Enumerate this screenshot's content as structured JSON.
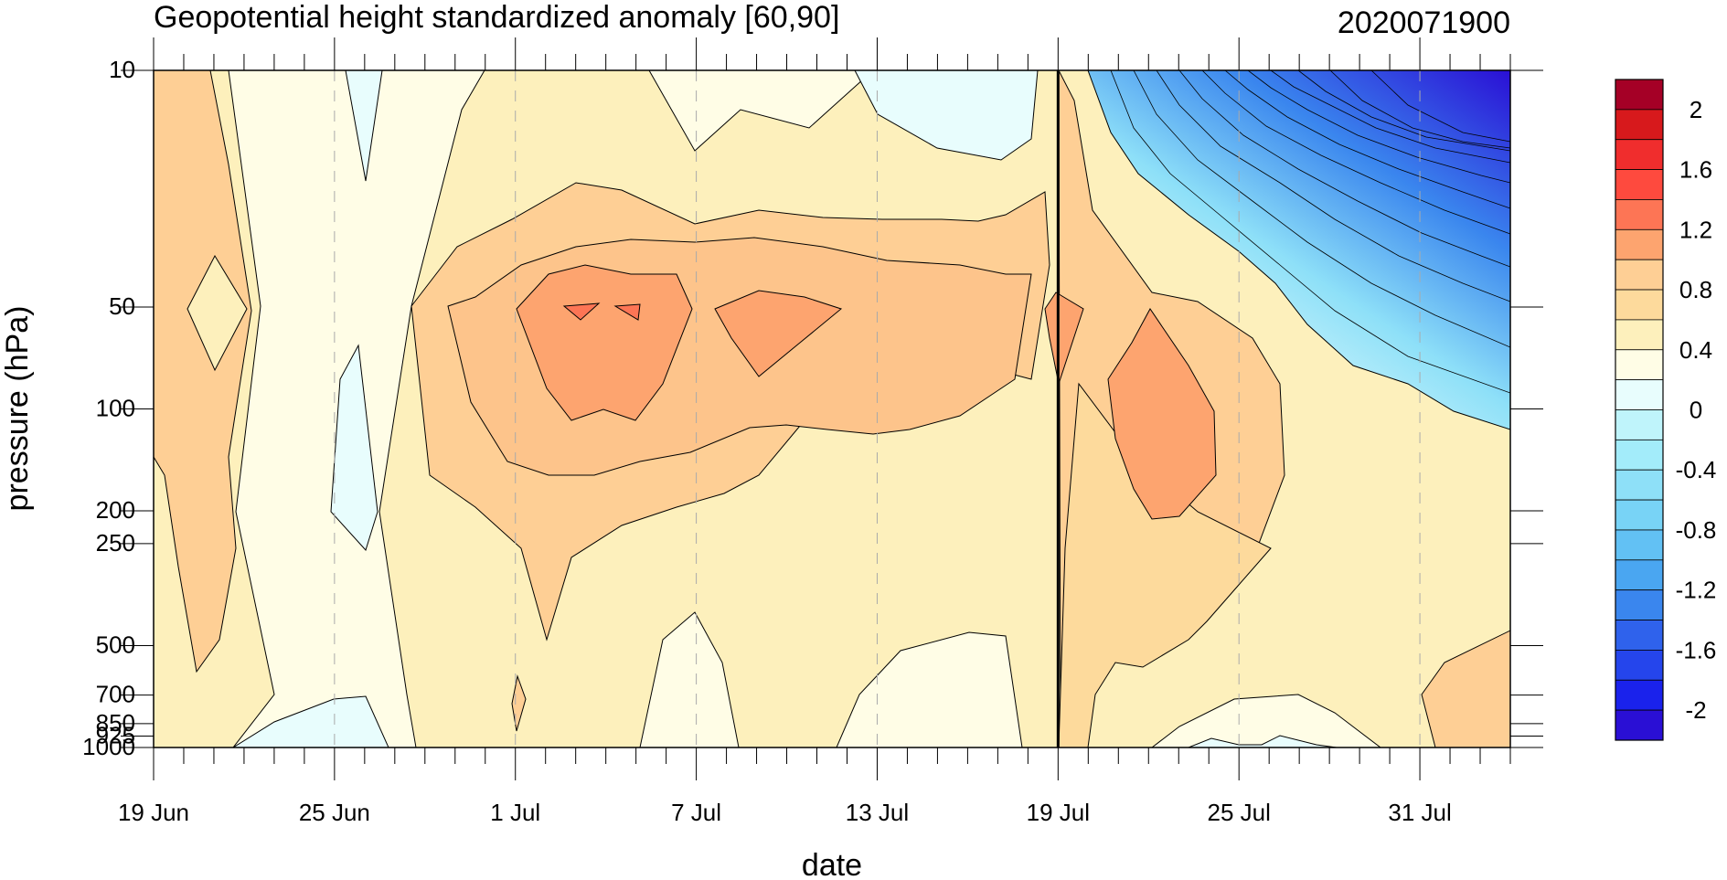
{
  "chart_data": {
    "type": "heatmap",
    "title": "Geopotential height standardized anomaly [60,90]",
    "subtitle": "2020071900",
    "xlabel": "date",
    "ylabel": "pressure (hPa)",
    "x_ticks": [
      "19 Jun",
      "25 Jun",
      "1 Jul",
      "7 Jul",
      "13 Jul",
      "19 Jul",
      "25 Jul",
      "31 Jul"
    ],
    "x_tick_days": [
      0,
      6,
      12,
      18,
      24,
      30,
      36,
      42
    ],
    "x_range_days": [
      0,
      45
    ],
    "y_ticks": [
      "10",
      "50",
      "100",
      "200",
      "250",
      "500",
      "700",
      "850",
      "925",
      "1000"
    ],
    "y_tick_values": [
      10,
      50,
      100,
      200,
      250,
      500,
      700,
      850,
      925,
      1000
    ],
    "y_scale": "log",
    "y_inverted": true,
    "y_range": [
      10,
      1000
    ],
    "current_date_marker": "19 Jul",
    "grid": "dashed vertical at labeled dates",
    "colorbar": {
      "labels": [
        "2",
        "1.6",
        "1.2",
        "0.8",
        "0.4",
        "0",
        "-0.4",
        "-0.8",
        "-1.2",
        "-1.6",
        "-2"
      ],
      "boundaries": [
        2.2,
        2.0,
        1.8,
        1.6,
        1.4,
        1.2,
        1.0,
        0.8,
        0.6,
        0.4,
        0.2,
        0.0,
        -0.2,
        -0.4,
        -0.6,
        -0.8,
        -1.0,
        -1.2,
        -1.4,
        -1.6,
        -1.8,
        -2.0,
        -2.2
      ],
      "colors": [
        "#a50026",
        "#d7191c",
        "#f02d2d",
        "#fe4a3e",
        "#fd7555",
        "#fda46f",
        "#fecf95",
        "#fdda9c",
        "#fdf0bc",
        "#fffde6",
        "#e8fdfd",
        "#bff4fb",
        "#a3ecfa",
        "#8ee0f8",
        "#78d3f6",
        "#62c1f4",
        "#4aa6f1",
        "#3a86ee",
        "#2f62ec",
        "#2545ec",
        "#1a22ec",
        "#2a0fd5"
      ]
    },
    "regions": [
      {
        "level": 0.4,
        "label": "weak positive anomaly, most of domain 19 Jun - 19 Jul"
      },
      {
        "level": 0.8,
        "label": "positive anomaly core 1 Jul - 19 Jul, 30-300 hPa"
      },
      {
        "level": 1.2,
        "label": "maxima near 3-5 Jul and 9 Jul at 50-100 hPa"
      },
      {
        "level": -2.0,
        "label": "strong negative anomaly, upper stratosphere, late July"
      }
    ]
  }
}
